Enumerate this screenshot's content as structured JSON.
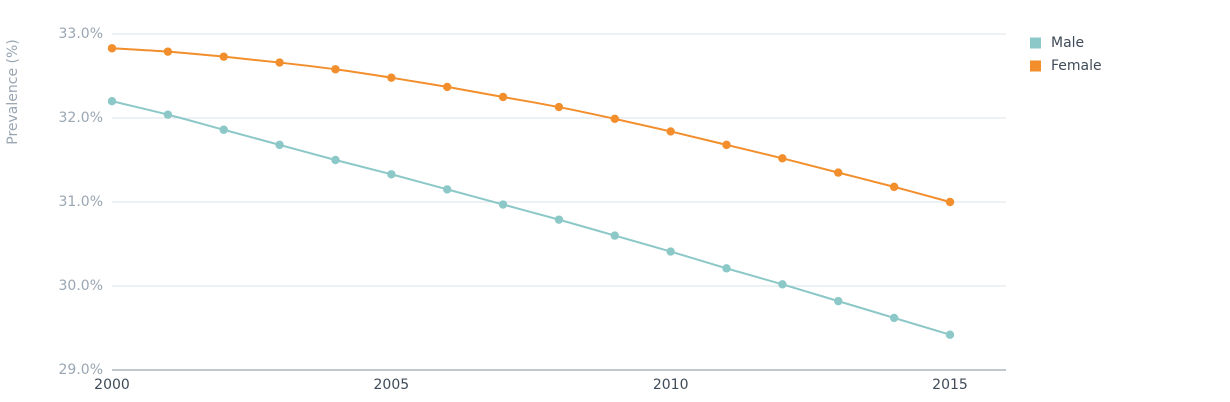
{
  "chart_data": {
    "type": "line",
    "title": "",
    "xlabel": "",
    "ylabel": "Prevalence (%)",
    "xlim": [
      2000,
      2016
    ],
    "ylim": [
      29.0,
      33.0
    ],
    "x": [
      2000,
      2001,
      2002,
      2003,
      2004,
      2005,
      2006,
      2007,
      2008,
      2009,
      2010,
      2011,
      2012,
      2013,
      2014,
      2015
    ],
    "x_ticks": [
      2000,
      2005,
      2010,
      2015
    ],
    "y_ticks": [
      29.0,
      30.0,
      31.0,
      32.0,
      33.0
    ],
    "y_tick_labels": [
      "29.0%",
      "30.0%",
      "31.0%",
      "32.0%",
      "33.0%"
    ],
    "x_tick_labels": [
      "2000",
      "2005",
      "2010",
      "2015"
    ],
    "grid": true,
    "legend_position": "top-right",
    "series": [
      {
        "name": "Male",
        "color": "#8cc8c8",
        "values": [
          32.2,
          32.04,
          31.86,
          31.68,
          31.5,
          31.33,
          31.15,
          30.97,
          30.79,
          30.6,
          30.41,
          30.21,
          30.02,
          29.82,
          29.62,
          29.42
        ]
      },
      {
        "name": "Female",
        "color": "#f28e2b",
        "values": [
          32.83,
          32.79,
          32.73,
          32.66,
          32.58,
          32.48,
          32.37,
          32.25,
          32.13,
          31.99,
          31.84,
          31.68,
          31.52,
          31.35,
          31.18,
          31.0
        ]
      }
    ]
  }
}
